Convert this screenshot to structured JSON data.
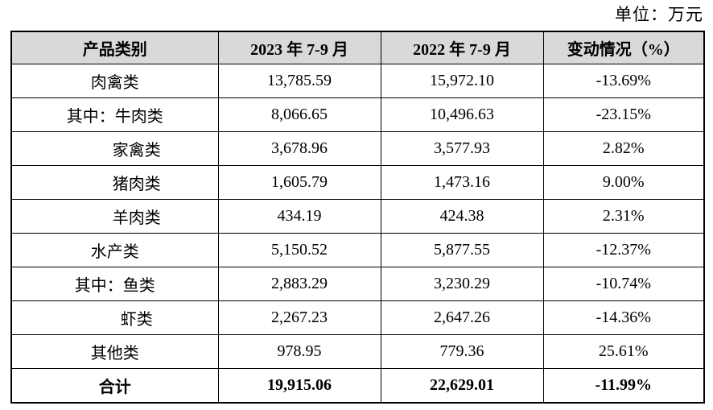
{
  "unit_label": "单位：万元",
  "colors": {
    "header_bg": "#d9d9d9",
    "border": "#000000",
    "text": "#000000",
    "background": "#ffffff"
  },
  "table": {
    "headers": [
      "产品类别",
      "2023 年 7-9 月",
      "2022 年 7-9 月",
      "变动情况（%）"
    ],
    "rows": [
      {
        "category": "肉禽类",
        "indent": false,
        "bold": false,
        "v2023": "13,785.59",
        "v2022": "15,972.10",
        "change": "-13.69%"
      },
      {
        "category": "其中：牛肉类",
        "indent": false,
        "bold": false,
        "v2023": "8,066.65",
        "v2022": "10,496.63",
        "change": "-23.15%"
      },
      {
        "category": "家禽类",
        "indent": true,
        "bold": false,
        "v2023": "3,678.96",
        "v2022": "3,577.93",
        "change": "2.82%"
      },
      {
        "category": "猪肉类",
        "indent": true,
        "bold": false,
        "v2023": "1,605.79",
        "v2022": "1,473.16",
        "change": "9.00%"
      },
      {
        "category": "羊肉类",
        "indent": true,
        "bold": false,
        "v2023": "434.19",
        "v2022": "424.38",
        "change": "2.31%"
      },
      {
        "category": "水产类",
        "indent": false,
        "bold": false,
        "v2023": "5,150.52",
        "v2022": "5,877.55",
        "change": "-12.37%"
      },
      {
        "category": "其中：鱼类",
        "indent": false,
        "bold": false,
        "v2023": "2,883.29",
        "v2022": "3,230.29",
        "change": "-10.74%"
      },
      {
        "category": "虾类",
        "indent": true,
        "bold": false,
        "v2023": "2,267.23",
        "v2022": "2,647.26",
        "change": "-14.36%"
      },
      {
        "category": "其他类",
        "indent": false,
        "bold": false,
        "v2023": "978.95",
        "v2022": "779.36",
        "change": "25.61%"
      },
      {
        "category": "合计",
        "indent": false,
        "bold": true,
        "v2023": "19,915.06",
        "v2022": "22,629.01",
        "change": "-11.99%"
      }
    ]
  }
}
